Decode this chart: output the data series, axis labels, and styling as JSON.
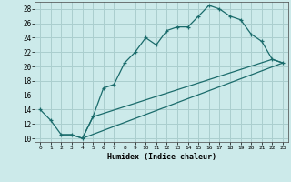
{
  "xlabel": "Humidex (Indice chaleur)",
  "bg_color": "#cceaea",
  "grid_color": "#aacece",
  "line_color": "#1a6b6b",
  "xlim": [
    -0.5,
    23.5
  ],
  "ylim": [
    9.5,
    29.0
  ],
  "xticks": [
    0,
    1,
    2,
    3,
    4,
    5,
    6,
    7,
    8,
    9,
    10,
    11,
    12,
    13,
    14,
    15,
    16,
    17,
    18,
    19,
    20,
    21,
    22,
    23
  ],
  "yticks": [
    10,
    12,
    14,
    16,
    18,
    20,
    22,
    24,
    26,
    28
  ],
  "line1_x": [
    0,
    1,
    2,
    3,
    4,
    5,
    6,
    7,
    8,
    9,
    10,
    11,
    12,
    13,
    14,
    15,
    16,
    17,
    18,
    19,
    20,
    21,
    22,
    23
  ],
  "line1_y": [
    14.0,
    12.5,
    10.5,
    10.5,
    10.0,
    13.0,
    17.0,
    17.5,
    20.5,
    22.0,
    24.0,
    23.0,
    25.0,
    25.5,
    25.5,
    27.0,
    28.5,
    28.0,
    27.0,
    26.5,
    24.5,
    23.5,
    21.0,
    20.5
  ],
  "line2_x": [
    2,
    3,
    4,
    5,
    22,
    23
  ],
  "line2_y": [
    10.5,
    10.5,
    10.0,
    13.0,
    21.0,
    20.5
  ],
  "line3_x": [
    4,
    23
  ],
  "line3_y": [
    10.0,
    20.5
  ]
}
